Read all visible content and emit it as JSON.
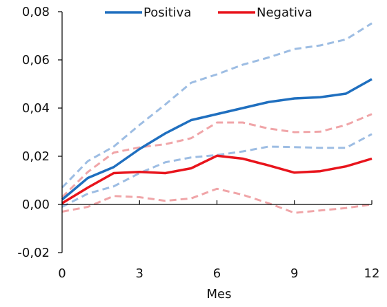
{
  "chart_data": {
    "type": "line",
    "xlabel": "Mes",
    "ylabel": "",
    "xlim": [
      0,
      12
    ],
    "ylim": [
      -0.02,
      0.08
    ],
    "x": [
      0,
      1,
      2,
      3,
      4,
      5,
      6,
      7,
      8,
      9,
      10,
      11,
      12
    ],
    "x_ticks": [
      0,
      3,
      6,
      9,
      12
    ],
    "x_tick_labels": [
      "0",
      "3",
      "6",
      "9",
      "12"
    ],
    "y_ticks": [
      -0.02,
      0.0,
      0.02,
      0.04,
      0.06,
      0.08
    ],
    "y_tick_labels": [
      "-0,02",
      "0,00",
      "0,02",
      "0,04",
      "0,06",
      "0,08"
    ],
    "grid": false,
    "legend_position": "top-center",
    "legend": [
      {
        "name": "Positiva",
        "color": "#1f6fbf"
      },
      {
        "name": "Negativa",
        "color": "#e8141c"
      }
    ],
    "series": [
      {
        "name": "Positiva",
        "color": "#1f6fbf",
        "style": "solid",
        "values": [
          0.002,
          0.011,
          0.0155,
          0.023,
          0.0295,
          0.035,
          0.0375,
          0.04,
          0.0425,
          0.044,
          0.0445,
          0.046,
          0.052
        ]
      },
      {
        "color": "#9dbde3",
        "style": "dashed",
        "values": [
          0.007,
          0.018,
          0.024,
          0.033,
          0.0415,
          0.0505,
          0.054,
          0.058,
          0.061,
          0.0645,
          0.066,
          0.0685,
          0.0752
        ]
      },
      {
        "color": "#9dbde3",
        "style": "dashed",
        "values": [
          -0.001,
          0.0045,
          0.0075,
          0.013,
          0.0175,
          0.0195,
          0.0205,
          0.022,
          0.024,
          0.0238,
          0.0235,
          0.0235,
          0.0292
        ]
      },
      {
        "name": "Negativa",
        "color": "#e8141c",
        "style": "solid",
        "values": [
          0.0005,
          0.007,
          0.013,
          0.0135,
          0.013,
          0.015,
          0.0202,
          0.019,
          0.0162,
          0.0132,
          0.0138,
          0.0158,
          0.019
        ]
      },
      {
        "color": "#f0a5a8",
        "style": "dashed",
        "values": [
          0.003,
          0.0135,
          0.0215,
          0.0237,
          0.025,
          0.0275,
          0.034,
          0.034,
          0.0315,
          0.03,
          0.0302,
          0.033,
          0.0375
        ]
      },
      {
        "color": "#f0a5a8",
        "style": "dashed",
        "values": [
          -0.003,
          -0.001,
          0.0035,
          0.003,
          0.0015,
          0.0025,
          0.0065,
          0.004,
          0.0005,
          -0.0035,
          -0.0025,
          -0.0015,
          0.0
        ]
      }
    ]
  }
}
